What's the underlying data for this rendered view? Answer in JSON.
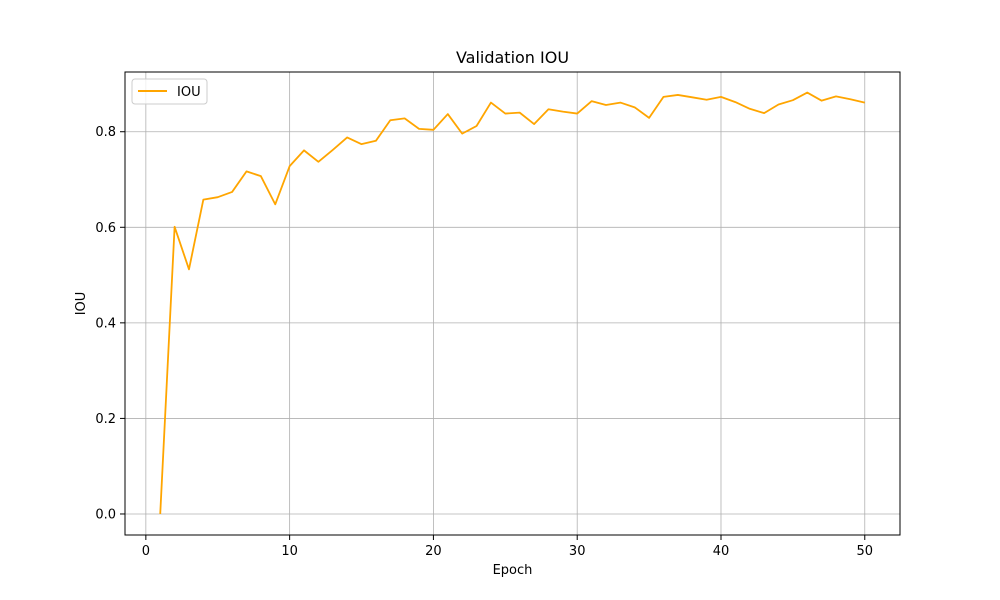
{
  "chart_data": {
    "type": "line",
    "title": "Validation IOU",
    "xlabel": "Epoch",
    "ylabel": "IOU",
    "xlim": [
      -1.45,
      52.45
    ],
    "ylim": [
      -0.044,
      0.925
    ],
    "xticks": [
      0,
      10,
      20,
      30,
      40,
      50
    ],
    "yticks": [
      0.0,
      0.2,
      0.4,
      0.6,
      0.8
    ],
    "grid": true,
    "legend_position": "upper-left",
    "series": [
      {
        "name": "IOU",
        "color": "#ffa500",
        "x": [
          1,
          2,
          3,
          4,
          5,
          6,
          7,
          8,
          9,
          10,
          11,
          12,
          13,
          14,
          15,
          16,
          17,
          18,
          19,
          20,
          21,
          22,
          23,
          24,
          25,
          26,
          27,
          28,
          29,
          30,
          31,
          32,
          33,
          34,
          35,
          36,
          37,
          38,
          39,
          40,
          41,
          42,
          43,
          44,
          45,
          46,
          47,
          48,
          49,
          50
        ],
        "y": [
          0.0,
          0.601,
          0.512,
          0.658,
          0.663,
          0.674,
          0.717,
          0.707,
          0.648,
          0.728,
          0.761,
          0.737,
          0.762,
          0.788,
          0.774,
          0.781,
          0.824,
          0.828,
          0.806,
          0.804,
          0.837,
          0.796,
          0.812,
          0.861,
          0.838,
          0.84,
          0.816,
          0.847,
          0.842,
          0.838,
          0.864,
          0.856,
          0.861,
          0.851,
          0.829,
          0.873,
          0.877,
          0.872,
          0.867,
          0.873,
          0.862,
          0.848,
          0.839,
          0.857,
          0.866,
          0.882,
          0.865,
          0.874,
          0.868,
          0.861
        ]
      }
    ]
  }
}
